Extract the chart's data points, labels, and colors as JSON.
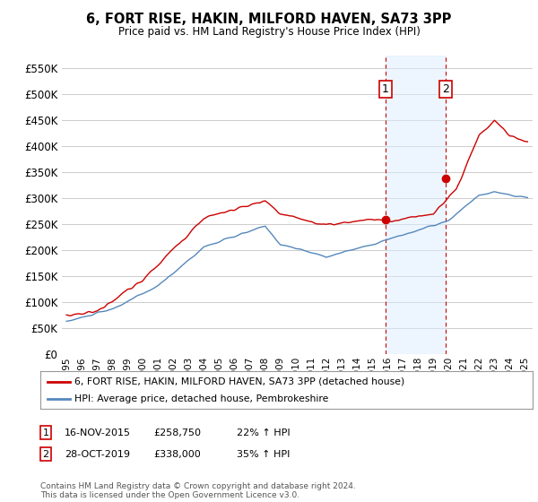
{
  "title": "6, FORT RISE, HAKIN, MILFORD HAVEN, SA73 3PP",
  "subtitle": "Price paid vs. HM Land Registry's House Price Index (HPI)",
  "ylim": [
    0,
    575000
  ],
  "yticks": [
    0,
    50000,
    100000,
    150000,
    200000,
    250000,
    300000,
    350000,
    400000,
    450000,
    500000,
    550000
  ],
  "ytick_labels": [
    "£0",
    "£50K",
    "£100K",
    "£150K",
    "£200K",
    "£250K",
    "£300K",
    "£350K",
    "£400K",
    "£450K",
    "£500K",
    "£550K"
  ],
  "red_line_color": "#cc0000",
  "blue_line_color": "#5588bb",
  "background_color": "#ffffff",
  "plot_bg_color": "#ffffff",
  "grid_color": "#cccccc",
  "sale1_date": 2015.88,
  "sale1_price": 258750,
  "sale1_label": "1",
  "sale2_date": 2019.83,
  "sale2_price": 338000,
  "sale2_label": "2",
  "shade_color": "#ddeeff",
  "shade_alpha": 0.5,
  "legend_entry1": "6, FORT RISE, HAKIN, MILFORD HAVEN, SA73 3PP (detached house)",
  "legend_entry2": "HPI: Average price, detached house, Pembrokeshire",
  "footnote": "Contains HM Land Registry data © Crown copyright and database right 2024.\nThis data is licensed under the Open Government Licence v3.0.",
  "table_row1": [
    "1",
    "16-NOV-2015",
    "£258,750",
    "22% ↑ HPI"
  ],
  "table_row2": [
    "2",
    "28-OCT-2019",
    "£338,000",
    "35% ↑ HPI"
  ]
}
